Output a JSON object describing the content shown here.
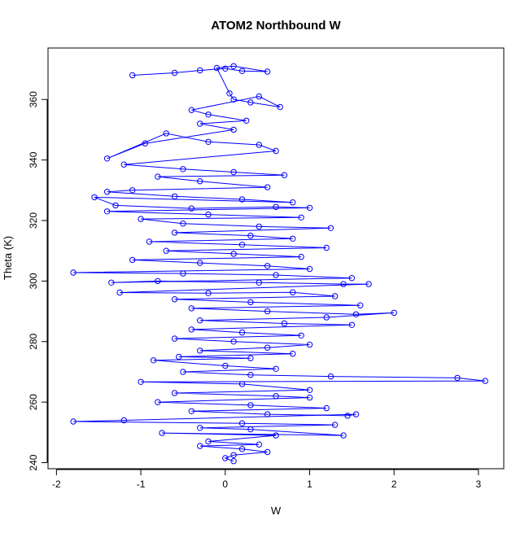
{
  "chart_data": {
    "type": "scatter",
    "title": "ATOM2 Northbound W",
    "xlabel": "W",
    "ylabel": "Theta (K)",
    "xlim": [
      -2.1,
      3.3
    ],
    "ylim": [
      238,
      377
    ],
    "xticks": [
      -2,
      -1,
      0,
      1,
      2,
      3
    ],
    "yticks": [
      240,
      260,
      280,
      300,
      320,
      340,
      360
    ],
    "grid": false,
    "series": [
      {
        "style": "points-connected",
        "color": "#0000ff",
        "points": [
          [
            -1.1,
            368
          ],
          [
            -0.6,
            368.8
          ],
          [
            -0.3,
            369.6
          ],
          [
            0,
            370.2
          ],
          [
            0.2,
            369.4
          ],
          [
            0.5,
            369.2
          ],
          [
            0.1,
            371
          ],
          [
            -0.1,
            370.4
          ],
          [
            0.05,
            362
          ],
          [
            0.1,
            360
          ],
          [
            0.3,
            359
          ],
          [
            0.65,
            357.5
          ],
          [
            0.4,
            361
          ],
          [
            -0.4,
            356.5
          ],
          [
            -0.2,
            355
          ],
          [
            0.25,
            353
          ],
          [
            -0.3,
            352
          ],
          [
            0.1,
            350
          ],
          [
            -0.95,
            345.5
          ],
          [
            -1.4,
            340.5
          ],
          [
            -0.7,
            348.8
          ],
          [
            -0.2,
            346
          ],
          [
            0.4,
            345
          ],
          [
            0.6,
            343
          ],
          [
            -1.2,
            338.5
          ],
          [
            -0.5,
            337
          ],
          [
            0.1,
            336
          ],
          [
            0.7,
            335
          ],
          [
            -0.8,
            334.5
          ],
          [
            -0.3,
            333
          ],
          [
            0.5,
            331
          ],
          [
            -1.1,
            330
          ],
          [
            -1.4,
            329.5
          ],
          [
            -0.6,
            328
          ],
          [
            0.2,
            327
          ],
          [
            0.8,
            326
          ],
          [
            -1.55,
            327.7
          ],
          [
            -1.3,
            325
          ],
          [
            -0.4,
            324
          ],
          [
            0.6,
            324.5
          ],
          [
            1.0,
            324.2
          ],
          [
            -1.4,
            323
          ],
          [
            -0.2,
            322
          ],
          [
            0.9,
            321
          ],
          [
            -1.0,
            320.5
          ],
          [
            -0.5,
            319
          ],
          [
            0.4,
            318
          ],
          [
            1.25,
            317.5
          ],
          [
            -0.6,
            316
          ],
          [
            0.3,
            315
          ],
          [
            0.8,
            314
          ],
          [
            -0.9,
            313
          ],
          [
            0.2,
            312
          ],
          [
            1.2,
            311
          ],
          [
            -0.7,
            310
          ],
          [
            0.1,
            309
          ],
          [
            0.9,
            308
          ],
          [
            -1.1,
            307
          ],
          [
            -0.3,
            306
          ],
          [
            0.5,
            305
          ],
          [
            1.0,
            304
          ],
          [
            -1.8,
            302.8
          ],
          [
            -0.5,
            302.5
          ],
          [
            0.6,
            302
          ],
          [
            1.5,
            301
          ],
          [
            -1.35,
            299.5
          ],
          [
            -0.8,
            300
          ],
          [
            0.4,
            299.5
          ],
          [
            1.4,
            299
          ],
          [
            1.7,
            299
          ],
          [
            -1.25,
            296.2
          ],
          [
            -0.2,
            296
          ],
          [
            0.8,
            296.3
          ],
          [
            1.3,
            295
          ],
          [
            -0.6,
            294
          ],
          [
            0.3,
            293
          ],
          [
            1.6,
            292
          ],
          [
            -0.4,
            291
          ],
          [
            0.5,
            290
          ],
          [
            1.55,
            289
          ],
          [
            2.0,
            289.5
          ],
          [
            1.2,
            288
          ],
          [
            -0.3,
            287
          ],
          [
            0.7,
            286
          ],
          [
            1.5,
            285.5
          ],
          [
            -0.4,
            284
          ],
          [
            0.2,
            283
          ],
          [
            0.9,
            282
          ],
          [
            -0.6,
            281
          ],
          [
            0.1,
            280
          ],
          [
            1.0,
            279
          ],
          [
            0.5,
            278
          ],
          [
            -0.3,
            277
          ],
          [
            0.8,
            276
          ],
          [
            -0.55,
            275
          ],
          [
            0.3,
            274.5
          ],
          [
            -0.85,
            273.8
          ],
          [
            0.0,
            272
          ],
          [
            0.6,
            271
          ],
          [
            -0.5,
            270
          ],
          [
            0.3,
            269
          ],
          [
            1.25,
            268.5
          ],
          [
            2.75,
            268
          ],
          [
            3.08,
            267
          ],
          [
            -1.0,
            266.7
          ],
          [
            0.2,
            266
          ],
          [
            1.0,
            264
          ],
          [
            -0.6,
            263
          ],
          [
            0.6,
            262
          ],
          [
            1.0,
            261.5
          ],
          [
            -0.8,
            260
          ],
          [
            0.3,
            259
          ],
          [
            1.2,
            258
          ],
          [
            -0.4,
            257
          ],
          [
            0.5,
            256
          ],
          [
            1.45,
            255.5
          ],
          [
            1.55,
            256
          ],
          [
            -1.2,
            254
          ],
          [
            -1.8,
            253.6
          ],
          [
            0.2,
            253
          ],
          [
            1.3,
            252.5
          ],
          [
            -0.3,
            251.5
          ],
          [
            0.3,
            251
          ],
          [
            1.4,
            249
          ],
          [
            -0.75,
            249.8
          ],
          [
            0.6,
            249
          ],
          [
            -0.2,
            247
          ],
          [
            0.4,
            246
          ],
          [
            -0.3,
            245.5
          ],
          [
            0.2,
            244.5
          ],
          [
            0.5,
            243.5
          ],
          [
            0.1,
            242.5
          ],
          [
            0.0,
            241.5
          ],
          [
            0.1,
            240.5
          ]
        ]
      }
    ]
  }
}
